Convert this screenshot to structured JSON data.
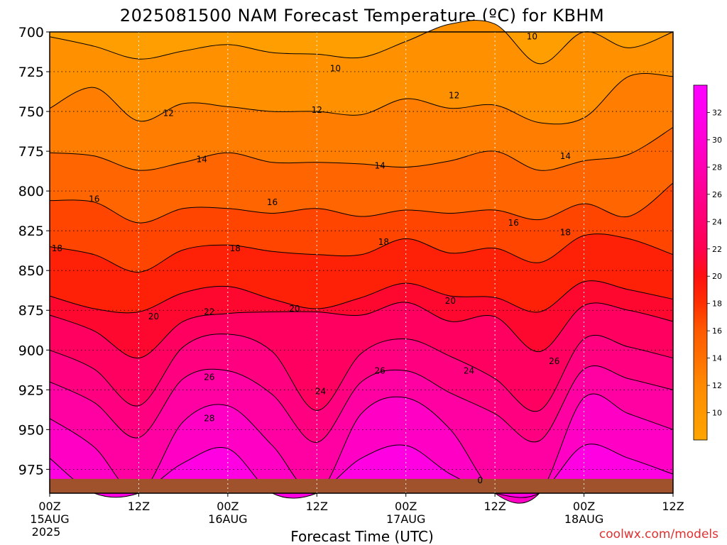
{
  "title": "2025081500 NAM Forecast Temperature (ºC) for KBHM",
  "xlabel": "Forecast Time (UTC)",
  "credit": "coolwx.com/models",
  "chart_data": {
    "type": "contour",
    "title": "2025081500 NAM Forecast Temperature (ºC) for KBHM",
    "xlabel": "Forecast Time (UTC)",
    "ylabel": "",
    "y_axis": {
      "range": [
        700,
        990
      ],
      "inverted": true,
      "ticks": [
        "700",
        "725",
        "750",
        "775",
        "800",
        "825",
        "850",
        "875",
        "900",
        "925",
        "950",
        "975"
      ]
    },
    "x_axis": {
      "range_hours": [
        0,
        84
      ],
      "ticks": [
        {
          "hour": 0,
          "label": "00Z",
          "sub": "15AUG",
          "sub2": "2025"
        },
        {
          "hour": 12,
          "label": "12Z",
          "sub": "",
          "sub2": ""
        },
        {
          "hour": 24,
          "label": "00Z",
          "sub": "16AUG",
          "sub2": ""
        },
        {
          "hour": 36,
          "label": "12Z",
          "sub": "",
          "sub2": ""
        },
        {
          "hour": 48,
          "label": "00Z",
          "sub": "17AUG",
          "sub2": ""
        },
        {
          "hour": 60,
          "label": "12Z",
          "sub": "",
          "sub2": ""
        },
        {
          "hour": 72,
          "label": "00Z",
          "sub": "18AUG",
          "sub2": ""
        },
        {
          "hour": 84,
          "label": "12Z",
          "sub": "",
          "sub2": ""
        }
      ]
    },
    "grid": true,
    "colorbar": {
      "ticks": [
        "10",
        "12",
        "14",
        "16",
        "18",
        "20",
        "22",
        "24",
        "26",
        "28",
        "30",
        "32"
      ],
      "min": 8,
      "max": 34
    },
    "surface_pressure_hpa": 981,
    "contour_levels": [
      10,
      12,
      14,
      16,
      18,
      20,
      22,
      24,
      26,
      28,
      30
    ],
    "isotherm_pressure_hpa": {
      "hours": [
        0,
        6,
        12,
        18,
        24,
        30,
        36,
        42,
        48,
        54,
        60,
        66,
        72,
        78,
        84
      ],
      "t10": [
        703,
        709,
        717,
        712,
        708,
        713,
        714,
        716,
        706,
        695,
        695,
        720,
        700,
        710,
        700
      ],
      "t12": [
        748,
        735,
        756,
        745,
        747,
        750,
        750,
        752,
        742,
        748,
        746,
        757,
        754,
        728,
        728
      ],
      "t14": [
        776,
        778,
        787,
        782,
        776,
        782,
        782,
        783,
        785,
        781,
        775,
        787,
        781,
        777,
        760
      ],
      "t16": [
        806,
        807,
        820,
        811,
        811,
        814,
        811,
        816,
        812,
        814,
        812,
        818,
        808,
        816,
        795
      ],
      "t18": [
        835,
        840,
        851,
        837,
        834,
        838,
        840,
        840,
        830,
        839,
        836,
        845,
        828,
        830,
        840
      ],
      "t20": [
        866,
        874,
        876,
        864,
        860,
        868,
        874,
        867,
        858,
        866,
        867,
        876,
        857,
        862,
        868
      ],
      "t22": [
        878,
        888,
        905,
        882,
        877,
        876,
        876,
        878,
        870,
        882,
        879,
        901,
        872,
        875,
        882
      ],
      "t24": [
        900,
        912,
        935,
        898,
        890,
        901,
        938,
        902,
        893,
        904,
        918,
        938,
        893,
        898,
        905
      ],
      "t26": [
        920,
        933,
        955,
        918,
        913,
        928,
        958,
        920,
        913,
        927,
        940,
        957,
        912,
        918,
        925
      ],
      "t28": [
        943,
        961,
        991,
        945,
        935,
        960,
        991,
        940,
        930,
        950,
        991,
        991,
        930,
        940,
        950
      ],
      "t30": [
        968,
        991,
        991,
        971,
        962,
        991,
        991,
        968,
        960,
        978,
        991,
        991,
        960,
        968,
        978
      ]
    },
    "contour_labels": [
      {
        "value": "10",
        "hour": 38.5,
        "p": 723
      },
      {
        "value": "10",
        "hour": 65,
        "p": 703
      },
      {
        "value": "12",
        "hour": 16,
        "p": 751
      },
      {
        "value": "12",
        "hour": 36,
        "p": 749
      },
      {
        "value": "12",
        "hour": 54.5,
        "p": 740
      },
      {
        "value": "14",
        "hour": 20.5,
        "p": 780
      },
      {
        "value": "14",
        "hour": 44.5,
        "p": 784
      },
      {
        "value": "14",
        "hour": 69.5,
        "p": 778
      },
      {
        "value": "16",
        "hour": 6,
        "p": 805
      },
      {
        "value": "16",
        "hour": 30,
        "p": 807
      },
      {
        "value": "16",
        "hour": 62.5,
        "p": 820
      },
      {
        "value": "18",
        "hour": 1,
        "p": 836
      },
      {
        "value": "18",
        "hour": 25,
        "p": 836
      },
      {
        "value": "18",
        "hour": 45,
        "p": 832
      },
      {
        "value": "18",
        "hour": 69.5,
        "p": 826
      },
      {
        "value": "20",
        "hour": 14,
        "p": 879
      },
      {
        "value": "20",
        "hour": 33,
        "p": 874
      },
      {
        "value": "20",
        "hour": 54,
        "p": 869
      },
      {
        "value": "22",
        "hour": 21.5,
        "p": 876
      },
      {
        "value": "24",
        "hour": 36.5,
        "p": 926
      },
      {
        "value": "24",
        "hour": 56.5,
        "p": 913
      },
      {
        "value": "26",
        "hour": 21.5,
        "p": 917
      },
      {
        "value": "26",
        "hour": 44.5,
        "p": 913
      },
      {
        "value": "26",
        "hour": 68,
        "p": 907
      },
      {
        "value": "28",
        "hour": 21.5,
        "p": 943
      },
      {
        "value": "0",
        "hour": 58,
        "p": 982
      }
    ]
  }
}
